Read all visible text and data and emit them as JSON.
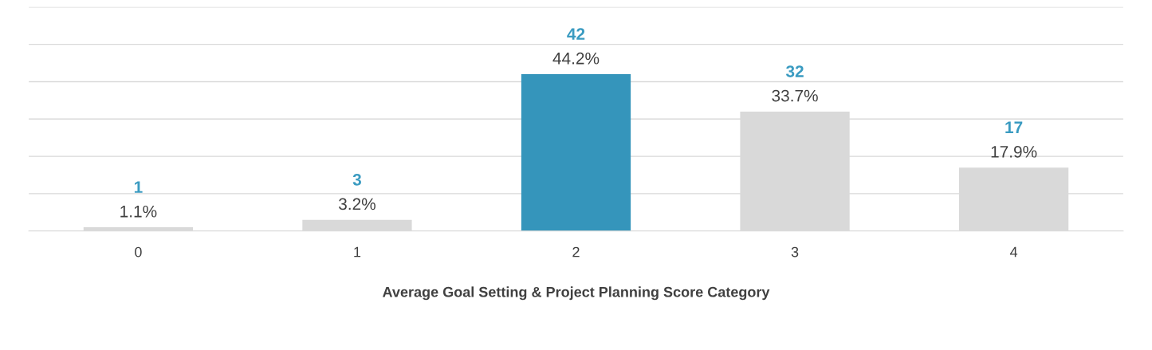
{
  "chart_data": {
    "type": "bar",
    "xlabel": "Average Goal Setting & Project Planning Score Category",
    "categories": [
      "0",
      "1",
      "2",
      "3",
      "4"
    ],
    "values": [
      1,
      3,
      42,
      32,
      17
    ],
    "colors": [
      "#d9d9d9",
      "#d9d9d9",
      "#3595bb",
      "#d9d9d9",
      "#d9d9d9"
    ],
    "data_labels": true,
    "ylim": [
      0,
      60
    ],
    "yticks": [
      {
        "value": 0,
        "label": null
      },
      {
        "value": 10,
        "label": null
      },
      {
        "value": 20,
        "label": null
      },
      {
        "value": 30,
        "label": null
      },
      {
        "value": 40,
        "label": null
      },
      {
        "value": 50,
        "label": null
      },
      {
        "value": 60,
        "label": null
      }
    ],
    "tick_labels": "x",
    "grid": "y",
    "annotations": [
      {
        "text": "1.1%",
        "x": "0",
        "y": 1
      },
      {
        "text": "3.2%",
        "x": "1",
        "y": 3
      },
      {
        "text": "44.2%",
        "x": "2",
        "y": 42
      },
      {
        "text": "33.7%",
        "x": "3",
        "y": 32
      },
      {
        "text": "17.9%",
        "x": "4",
        "y": 17
      }
    ]
  }
}
